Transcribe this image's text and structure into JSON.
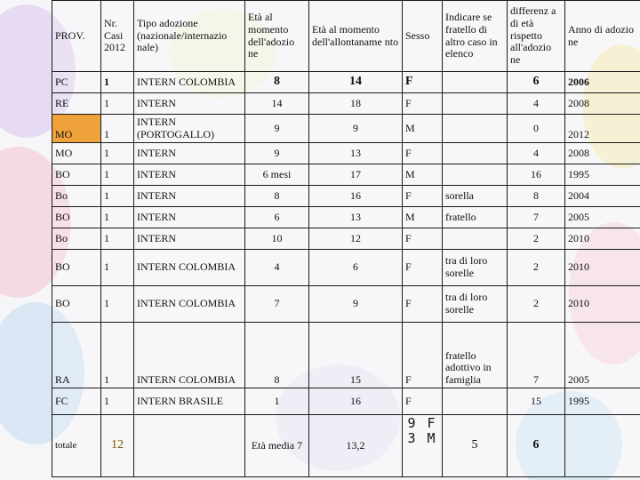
{
  "headers": {
    "prov": "PROV.",
    "nr_casi": "Nr. Casi 2012",
    "tipo": "Tipo adozione (nazionale/internazio nale)",
    "eta_adozione": "Età al momento dell'adozio ne",
    "eta_allontanamento": "Età al momento dell'allontaname nto",
    "sesso": "Sesso",
    "fratello": "Indicare se fratello di altro caso in elenco",
    "differenza": "differenz a di età rispetto all'adozio ne",
    "anno": "Anno di adozio ne"
  },
  "rows": [
    {
      "prov": "PC",
      "nr": "1",
      "tipo": "INTERN COLOMBIA",
      "eta_ad": "8",
      "eta_all": "14",
      "sesso": "F",
      "fratello": "",
      "diff": "6",
      "anno": "2006"
    },
    {
      "prov": "RE",
      "nr": "1",
      "tipo": "INTERN",
      "eta_ad": "14",
      "eta_all": "18",
      "sesso": "F",
      "fratello": "",
      "diff": "4",
      "anno": "2008"
    },
    {
      "prov": "MO",
      "nr": "1",
      "tipo": "INTERN (PORTOGALLO)",
      "eta_ad": "9",
      "eta_all": "9",
      "sesso": "M",
      "fratello": "",
      "diff": "0",
      "anno": "2012"
    },
    {
      "prov": "MO",
      "nr": "1",
      "tipo": "INTERN",
      "eta_ad": "9",
      "eta_all": "13",
      "sesso": "F",
      "fratello": "",
      "diff": "4",
      "anno": "2008"
    },
    {
      "prov": "BO",
      "nr": "1",
      "tipo": "INTERN",
      "eta_ad": "6 mesi",
      "eta_all": "17",
      "sesso": "M",
      "fratello": "",
      "diff": "16",
      "anno": "1995"
    },
    {
      "prov": "Bo",
      "nr": "1",
      "tipo": "INTERN",
      "eta_ad": "8",
      "eta_all": "16",
      "sesso": "F",
      "fratello": "sorella",
      "diff": "8",
      "anno": "2004"
    },
    {
      "prov": "BO",
      "nr": "1",
      "tipo": "INTERN",
      "eta_ad": "6",
      "eta_all": "13",
      "sesso": "M",
      "fratello": "fratello",
      "diff": "7",
      "anno": "2005"
    },
    {
      "prov": "Bo",
      "nr": "1",
      "tipo": "INTERN",
      "eta_ad": "10",
      "eta_all": "12",
      "sesso": "F",
      "fratello": "",
      "diff": "2",
      "anno": "2010"
    },
    {
      "prov": "BO",
      "nr": "1",
      "tipo": "INTERN COLOMBIA",
      "eta_ad": "4",
      "eta_all": "6",
      "sesso": "F",
      "fratello": "tra di loro sorelle",
      "diff": "2",
      "anno": "2010"
    },
    {
      "prov": "BO",
      "nr": "1",
      "tipo": "INTERN COLOMBIA",
      "eta_ad": "7",
      "eta_all": "9",
      "sesso": "F",
      "fratello": "tra di loro sorelle",
      "diff": "2",
      "anno": "2010"
    },
    {
      "prov": "RA",
      "nr": "1",
      "tipo": "INTERN COLOMBIA",
      "eta_ad": "8",
      "eta_all": "15",
      "sesso": "F",
      "fratello": "fratello adottivo in famiglia",
      "diff": "7",
      "anno": "2005"
    },
    {
      "prov": "FC",
      "nr": "1",
      "tipo": "INTERN BRASILE",
      "eta_ad": "1",
      "eta_all": "16",
      "sesso": "F",
      "fratello": "",
      "diff": "15",
      "anno": "1995"
    }
  ],
  "totals": {
    "label": "totale",
    "nr": "12",
    "eta_media": "Età media 7",
    "eta_all_media": "13,2",
    "sesso_f": "9 F",
    "sesso_m": "3 M",
    "fratello": "5",
    "diff": "6"
  },
  "colors": {
    "highlight": "#f0a23a",
    "balloon_pink": "#f4c9d6",
    "balloon_blue": "#cde2f5",
    "balloon_yellow": "#f7ecb0",
    "balloon_purple": "#dccdf0"
  }
}
